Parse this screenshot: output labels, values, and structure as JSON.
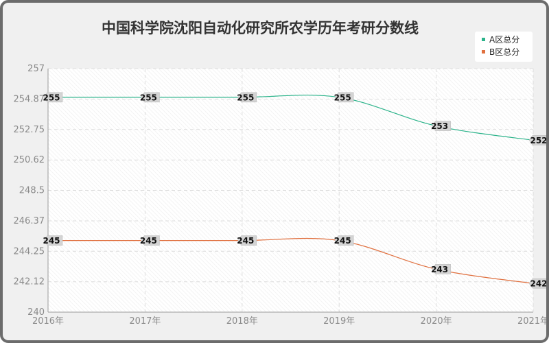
{
  "chart_data": {
    "type": "line",
    "title": "中国科学院沈阳自动化研究所农学历年考研分数线",
    "xlabel": "",
    "ylabel": "",
    "categories": [
      "2016年",
      "2017年",
      "2018年",
      "2019年",
      "2020年",
      "2021年"
    ],
    "y_ticks": [
      "257",
      "254.87",
      "252.75",
      "250.62",
      "248.5",
      "246.37",
      "244.25",
      "242.12",
      "240"
    ],
    "ylim": [
      240,
      257
    ],
    "grid": true,
    "legend_position": "top-right",
    "series": [
      {
        "name": "A区总分",
        "color": "#2bb38a",
        "values": [
          255,
          255,
          255,
          255,
          253,
          252
        ],
        "labels": [
          "255",
          "255",
          "255",
          "255",
          "253",
          "252"
        ]
      },
      {
        "name": "B区总分",
        "color": "#e0703f",
        "values": [
          245,
          245,
          245,
          245,
          243,
          242
        ],
        "labels": [
          "245",
          "245",
          "245",
          "245",
          "243",
          "242"
        ]
      }
    ]
  }
}
